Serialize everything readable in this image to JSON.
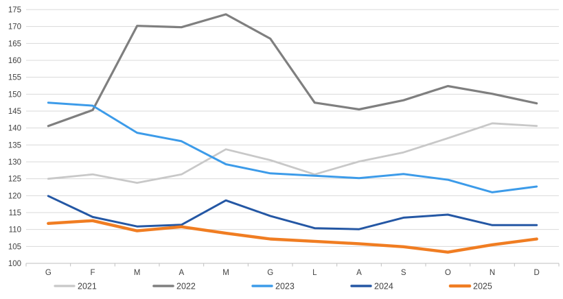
{
  "chart_data": {
    "type": "line",
    "title": "",
    "xlabel": "",
    "ylabel": "",
    "categories": [
      "G",
      "F",
      "M",
      "A",
      "M",
      "G",
      "L",
      "A",
      "S",
      "O",
      "N",
      "D"
    ],
    "series": [
      {
        "name": "2021",
        "color": "#C8C8C8",
        "stroke_width": 2.8,
        "values": [
          125.0,
          126.3,
          123.8,
          126.3,
          133.7,
          130.5,
          126.3,
          130.1,
          132.8,
          137.0,
          141.4,
          140.6
        ]
      },
      {
        "name": "2022",
        "color": "#7F7F7F",
        "stroke_width": 3.2,
        "values": [
          140.6,
          145.3,
          170.2,
          169.8,
          173.6,
          166.4,
          147.5,
          145.5,
          148.2,
          152.4,
          150.1,
          147.3
        ]
      },
      {
        "name": "2023",
        "color": "#3C9BE9",
        "stroke_width": 3.0,
        "values": [
          147.5,
          146.6,
          138.6,
          136.1,
          129.3,
          126.6,
          125.9,
          125.2,
          126.4,
          124.7,
          121.0,
          122.7
        ]
      },
      {
        "name": "2024",
        "color": "#2457A4",
        "stroke_width": 3.0,
        "values": [
          119.9,
          113.7,
          110.9,
          111.4,
          118.6,
          114.0,
          110.4,
          110.1,
          113.5,
          114.4,
          111.3,
          111.3
        ]
      },
      {
        "name": "2025",
        "color": "#F07D22",
        "stroke_width": 4.4,
        "values": [
          111.8,
          112.6,
          109.6,
          110.8,
          108.9,
          107.2,
          106.5,
          105.8,
          104.9,
          103.3,
          105.5,
          107.2
        ]
      }
    ],
    "ylim": [
      100,
      175
    ],
    "ytick_step": 5,
    "ytick_labels": [
      "100",
      "105",
      "110",
      "115",
      "120",
      "125",
      "130",
      "135",
      "140",
      "145",
      "150",
      "155",
      "160",
      "165",
      "170",
      "175"
    ],
    "grid": "horizontal",
    "legend_position": "bottom",
    "legend_labels": [
      "2021",
      "2022",
      "2023",
      "2024",
      "2025"
    ],
    "colors": {
      "gridline": "#D9D9D9",
      "axis_line": "#BFBFBF",
      "tick_mark": "#BFBFBF",
      "axis_text": "#404040",
      "legend_text": "#404040",
      "background": "#FFFFFF"
    }
  }
}
